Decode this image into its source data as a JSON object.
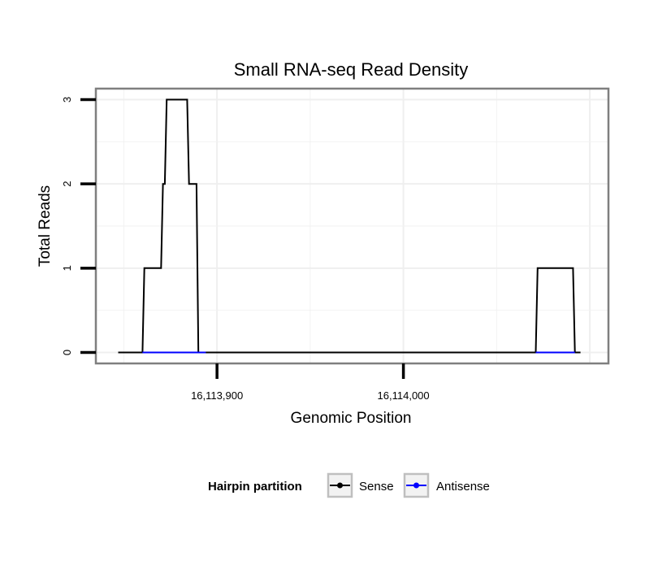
{
  "chart_data": {
    "type": "line",
    "title": "Small RNA-seq Read Density",
    "xlabel": "Genomic Position",
    "ylabel": "Total Reads",
    "xlim": [
      16113835,
      16114110
    ],
    "ylim": [
      -0.13,
      3.13
    ],
    "x_ticks": [
      16113900,
      16114000
    ],
    "x_tick_labels": [
      "16,113,900",
      "16,114,000"
    ],
    "y_ticks": [
      0,
      1,
      2,
      3
    ],
    "y_tick_labels": [
      "0",
      "1",
      "2",
      "3"
    ],
    "grid": true,
    "legend": {
      "title": "Hairpin partition",
      "position": "bottom",
      "entries": [
        {
          "label": "Sense",
          "color": "#000000"
        },
        {
          "label": "Antisense",
          "color": "#0000ff"
        }
      ]
    },
    "series": [
      {
        "name": "Sense",
        "color": "#000000",
        "x": [
          16113847,
          16113860,
          16113861,
          16113870,
          16113871,
          16113872,
          16113873,
          16113884,
          16113885,
          16113889,
          16113890,
          16113894,
          16114071,
          16114072,
          16114091,
          16114092,
          16114095
        ],
        "y": [
          0,
          0,
          1,
          1,
          2,
          2,
          3,
          3,
          2,
          2,
          0,
          0,
          0,
          1,
          1,
          0,
          0
        ]
      },
      {
        "name": "Antisense",
        "color": "#0000ff",
        "x": [
          16113860,
          16113894,
          16114071,
          16114092
        ],
        "y": [
          0,
          0,
          0,
          0
        ],
        "segments": [
          [
            0,
            1
          ],
          [
            2,
            3
          ]
        ]
      }
    ]
  }
}
